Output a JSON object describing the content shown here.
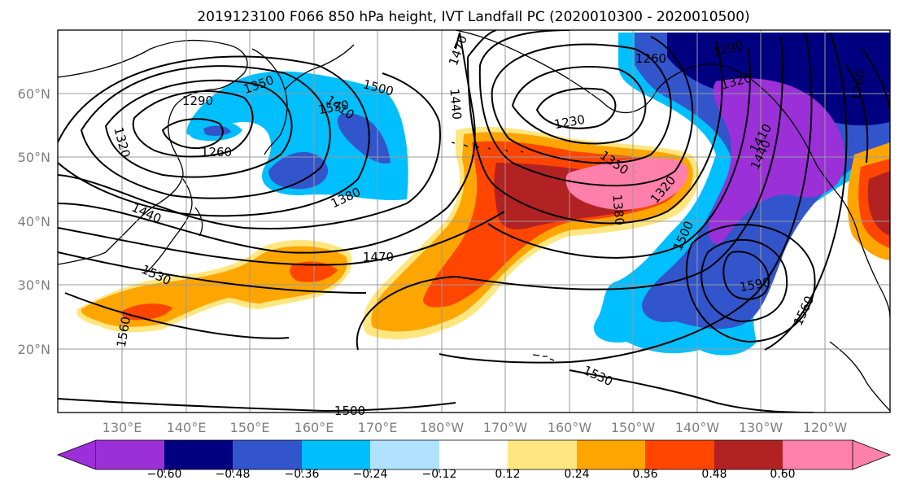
{
  "title": "2019123100 F066 850 hPa height, IVT Landfall PC (2020010300 - 2020010500)",
  "map": {
    "lon_labels": [
      "130°E",
      "140°E",
      "150°E",
      "160°E",
      "170°E",
      "180°W",
      "170°W",
      "160°W",
      "150°W",
      "140°W",
      "130°W",
      "120°W"
    ],
    "lat_labels": [
      "60°N",
      "50°N",
      "40°N",
      "30°N",
      "20°N"
    ],
    "gridlines": true,
    "field": "IVT Landfall PC",
    "contour_field": "850 hPa height",
    "contour_labels": [
      "1470",
      "1500",
      "1350",
      "1410",
      "1290",
      "1260",
      "1320",
      "1440",
      "1230",
      "1440",
      "1260",
      "1290",
      "1320",
      "1260",
      "1350",
      "1380",
      "1380",
      "1320",
      "1440",
      "1500",
      "1470",
      "1530",
      "1560",
      "1590",
      "1560",
      "1530",
      "1500",
      "1530",
      "1410"
    ]
  },
  "colorbar": {
    "tick_labels": [
      "−0.60",
      "−0.48",
      "−0.36",
      "−0.24",
      "−0.12",
      "0.12",
      "0.24",
      "0.36",
      "0.48",
      "0.60"
    ],
    "colors": [
      "#9b30d9",
      "#000080",
      "#3355cc",
      "#00bfff",
      "#b0e2ff",
      "#ffffff",
      "#ffe680",
      "#ffa500",
      "#ff4500",
      "#b22222",
      "#ff80aa"
    ],
    "extend": "both"
  }
}
